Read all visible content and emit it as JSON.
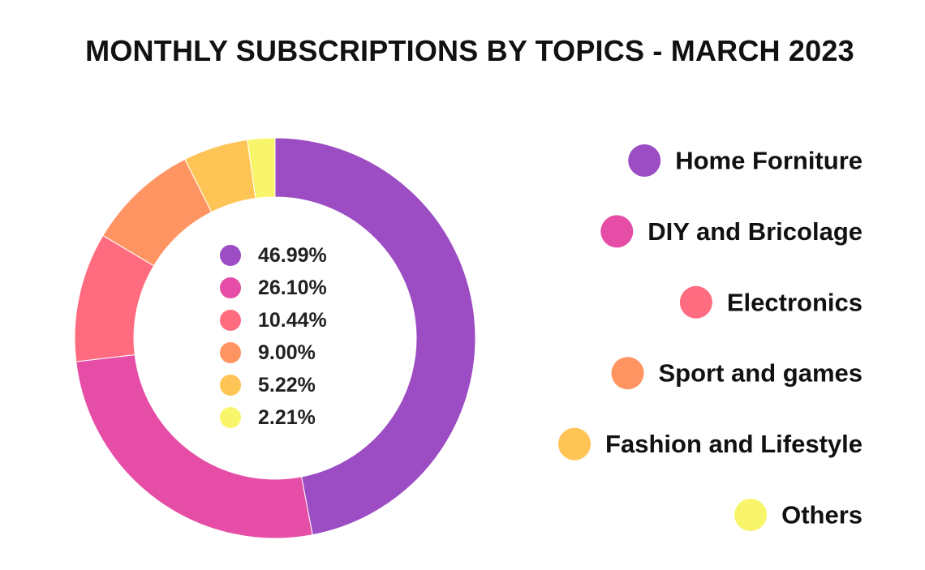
{
  "chart_data": {
    "type": "pie",
    "variant": "donut",
    "title": "MONTHLY SUBSCRIPTIONS BY TOPICS - MARCH 2023",
    "categories": [
      "Home Forniture",
      "DIY and Bricolage",
      "Electronics",
      "Sport and games",
      "Fashion and Lifestyle",
      "Others"
    ],
    "values": [
      46.99,
      26.1,
      10.44,
      9.0,
      5.22,
      2.21
    ],
    "value_labels": [
      "46.99%",
      "26.10%",
      "10.44%",
      "9.00%",
      "5.22%",
      "2.21%"
    ],
    "colors": [
      "#9c4dc4",
      "#e54da6",
      "#ff6b7f",
      "#ff9463",
      "#ffc456",
      "#f8f56a"
    ],
    "legend_position": "right"
  }
}
